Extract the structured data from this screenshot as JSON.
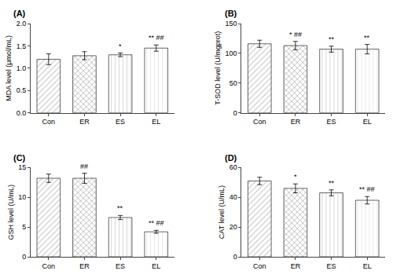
{
  "chart_data": [
    {
      "type": "bar",
      "title": "(A)",
      "ylabel": "MDA level (μmol/mL)",
      "categories": [
        "Con",
        "ER",
        "ES",
        "EL"
      ],
      "values": [
        1.2,
        1.28,
        1.3,
        1.45
      ],
      "errors": [
        0.12,
        0.09,
        0.04,
        0.07
      ],
      "colors": [
        "#c0c0c0",
        "#909090",
        "#d8d8d8",
        "#e8e8e8"
      ],
      "ylim": [
        0,
        2.0
      ],
      "yticks": [
        {
          "value": 0.0,
          "label": "0.0"
        },
        0.5,
        {
          "value": 1.0,
          "label": "1.0"
        },
        1.5,
        {
          "value": 2.0,
          "label": "2.0"
        }
      ],
      "grid": false,
      "annotations": [
        {
          "x": "ES",
          "text": "*"
        },
        {
          "x": "EL",
          "text": "** ##"
        }
      ]
    },
    {
      "type": "bar",
      "title": "(B)",
      "ylabel": "T-SOD level (U/mgprot)",
      "categories": [
        "Con",
        "ER",
        "ES",
        "EL"
      ],
      "values": [
        116,
        113,
        107,
        107
      ],
      "errors": [
        6,
        7,
        5,
        8
      ],
      "colors": [
        "#c0c0c0",
        "#909090",
        "#d8d8d8",
        "#e8e8e8"
      ],
      "ylim": [
        0,
        150
      ],
      "yticks": [
        0,
        50,
        100,
        150
      ],
      "grid": false,
      "annotations": [
        {
          "x": "ER",
          "text": "* ##"
        },
        {
          "x": "ES",
          "text": "**"
        },
        {
          "x": "EL",
          "text": "**"
        }
      ]
    },
    {
      "type": "bar",
      "title": "(C)",
      "ylabel": "GSH level (U/mL)",
      "categories": [
        "Con",
        "ER",
        "ES",
        "EL"
      ],
      "values": [
        13.2,
        13.2,
        6.6,
        4.2
      ],
      "errors": [
        0.7,
        0.85,
        0.35,
        0.25
      ],
      "colors": [
        "#c0c0c0",
        "#909090",
        "#d8d8d8",
        "#e8e8e8"
      ],
      "ylim": [
        0,
        15
      ],
      "yticks": [
        0,
        5,
        10,
        15
      ],
      "grid": false,
      "annotations": [
        {
          "x": "ER",
          "text": "##"
        },
        {
          "x": "ES",
          "text": "**"
        },
        {
          "x": "EL",
          "text": "** ##"
        }
      ]
    },
    {
      "type": "bar",
      "title": "(D)",
      "ylabel": "CAT level (U/mL)",
      "categories": [
        "Con",
        "ER",
        "ES",
        "EL"
      ],
      "values": [
        51,
        46,
        43,
        38
      ],
      "errors": [
        2.5,
        3.0,
        2.0,
        2.5
      ],
      "colors": [
        "#c0c0c0",
        "#909090",
        "#d8d8d8",
        "#e8e8e8"
      ],
      "ylim": [
        0,
        60
      ],
      "yticks": [
        0,
        20,
        40,
        60
      ],
      "grid": false,
      "annotations": [
        {
          "x": "ER",
          "text": "*"
        },
        {
          "x": "ES",
          "text": "**"
        },
        {
          "x": "EL",
          "text": "** ##"
        }
      ]
    }
  ]
}
